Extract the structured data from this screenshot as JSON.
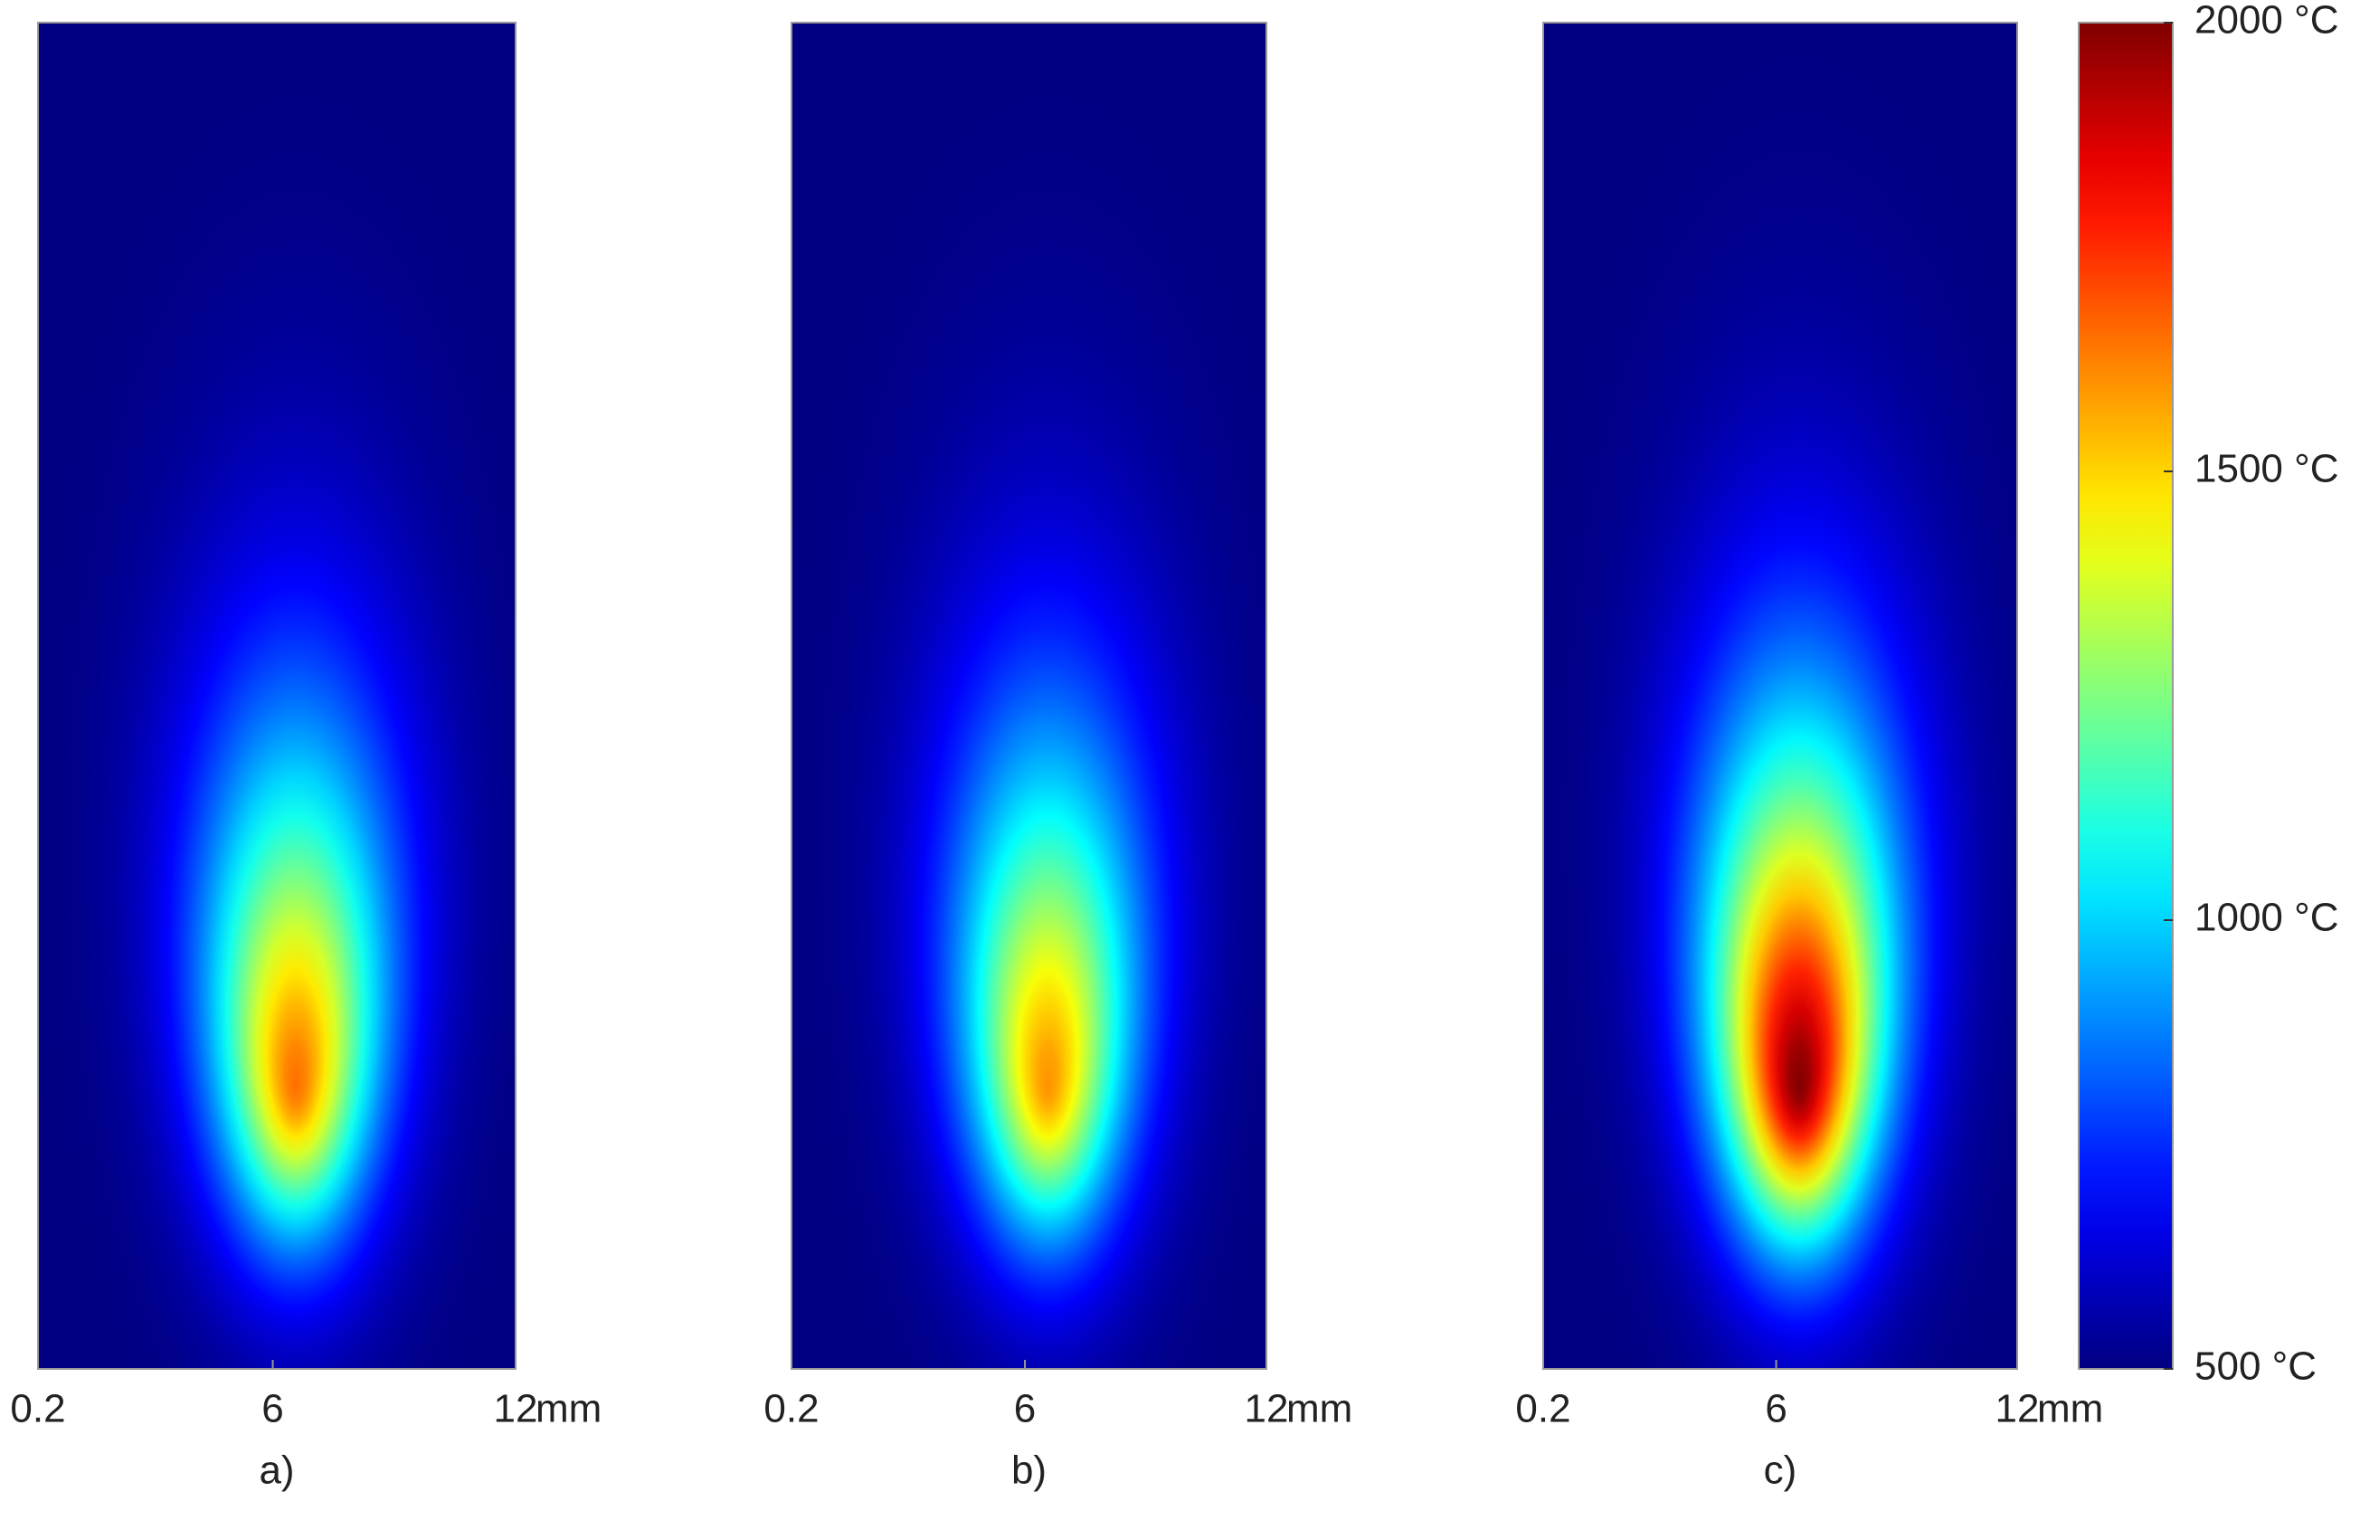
{
  "chart_data": [
    {
      "type": "heatmap",
      "label": "a)",
      "peak": 1650,
      "xlim": [
        0.2,
        12
      ],
      "xticks": [
        0.2,
        6,
        12
      ],
      "x_unit": "mm"
    },
    {
      "type": "heatmap",
      "label": "b)",
      "peak": 1600,
      "xlim": [
        0.2,
        12
      ],
      "xticks": [
        0.2,
        6,
        12
      ],
      "x_unit": "mm"
    },
    {
      "type": "heatmap",
      "label": "c)",
      "peak": 2000,
      "xlim": [
        0.2,
        12
      ],
      "xticks": [
        0.2,
        6,
        12
      ],
      "x_unit": "mm"
    },
    {
      "type": "colorbar",
      "clim": [
        500,
        2000
      ],
      "ticks": [
        {
          "value": 2000,
          "label": "2000 °C"
        },
        {
          "value": 1500,
          "label": "1500 °C"
        },
        {
          "value": 1000,
          "label": "1000 °C"
        },
        {
          "value": 500,
          "label": "500 °C"
        }
      ]
    }
  ]
}
